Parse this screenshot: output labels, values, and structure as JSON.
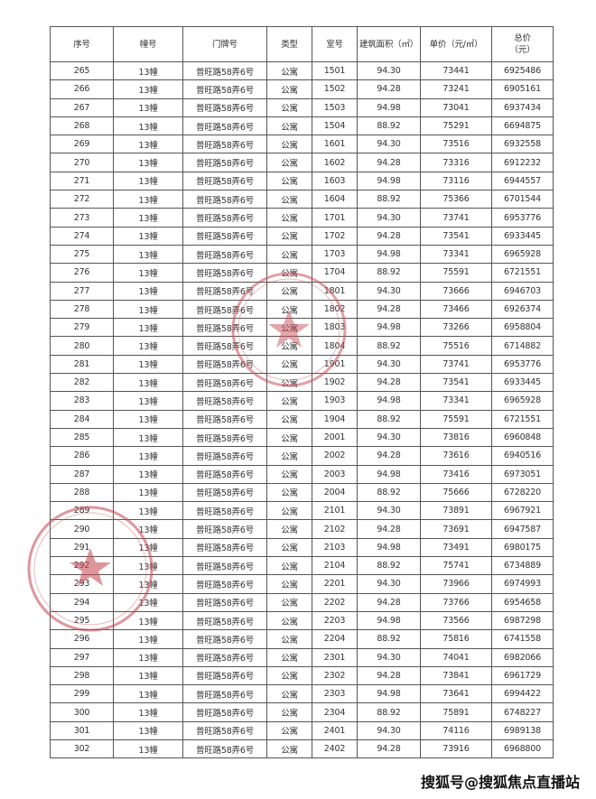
{
  "headers": [
    "序号",
    "幢号",
    "门牌号",
    "类型",
    "室号",
    "建筑面积（㎡）",
    "单价（元/㎡）",
    "总价\n（元）"
  ],
  "rows": [
    [
      "265",
      "13幢",
      "普旺路58弄6号",
      "公寓",
      "1501",
      "94.30",
      "73441",
      "6925486"
    ],
    [
      "266",
      "13幢",
      "普旺路58弄6号",
      "公寓",
      "1502",
      "94.28",
      "73241",
      "6905161"
    ],
    [
      "267",
      "13幢",
      "普旺路58弄6号",
      "公寓",
      "1503",
      "94.98",
      "73041",
      "6937434"
    ],
    [
      "268",
      "13幢",
      "普旺路58弄6号",
      "公寓",
      "1504",
      "88.92",
      "75291",
      "6694875"
    ],
    [
      "269",
      "13幢",
      "普旺路58弄6号",
      "公寓",
      "1601",
      "94.30",
      "73516",
      "6932558"
    ],
    [
      "270",
      "13幢",
      "普旺路58弄6号",
      "公寓",
      "1602",
      "94.28",
      "73316",
      "6912232"
    ],
    [
      "271",
      "13幢",
      "普旺路58弄6号",
      "公寓",
      "1603",
      "94.98",
      "73116",
      "6944557"
    ],
    [
      "272",
      "13幢",
      "普旺路58弄6号",
      "公寓",
      "1604",
      "88.92",
      "75366",
      "6701544"
    ],
    [
      "273",
      "13幢",
      "普旺路58弄6号",
      "公寓",
      "1701",
      "94.30",
      "73741",
      "6953776"
    ],
    [
      "274",
      "13幢",
      "普旺路58弄6号",
      "公寓",
      "1702",
      "94.28",
      "73541",
      "6933445"
    ],
    [
      "275",
      "13幢",
      "普旺路58弄6号",
      "公寓",
      "1703",
      "94.98",
      "73341",
      "6965928"
    ],
    [
      "276",
      "13幢",
      "普旺路58弄6号",
      "公寓",
      "1704",
      "88.92",
      "75591",
      "6721551"
    ],
    [
      "277",
      "13幢",
      "普旺路58弄6号",
      "公寓",
      "1801",
      "94.30",
      "73666",
      "6946703"
    ],
    [
      "278",
      "13幢",
      "普旺路58弄6号",
      "公寓",
      "1802",
      "94.28",
      "73466",
      "6926374"
    ],
    [
      "279",
      "13幢",
      "普旺路58弄6号",
      "公寓",
      "1803",
      "94.98",
      "73266",
      "6958804"
    ],
    [
      "280",
      "13幢",
      "普旺路58弄6号",
      "公寓",
      "1804",
      "88.92",
      "75516",
      "6714882"
    ],
    [
      "281",
      "13幢",
      "普旺路58弄6号",
      "公寓",
      "1901",
      "94.30",
      "73741",
      "6953776"
    ],
    [
      "282",
      "13幢",
      "普旺路58弄6号",
      "公寓",
      "1902",
      "94.28",
      "73541",
      "6933445"
    ],
    [
      "283",
      "13幢",
      "普旺路58弄6号",
      "公寓",
      "1903",
      "94.98",
      "73341",
      "6965928"
    ],
    [
      "284",
      "13幢",
      "普旺路58弄6号",
      "公寓",
      "1904",
      "88.92",
      "75591",
      "6721551"
    ],
    [
      "285",
      "13幢",
      "普旺路58弄6号",
      "公寓",
      "2001",
      "94.30",
      "73816",
      "6960848"
    ],
    [
      "286",
      "13幢",
      "普旺路58弄6号",
      "公寓",
      "2002",
      "94.28",
      "73616",
      "6940516"
    ],
    [
      "287",
      "13幢",
      "普旺路58弄6号",
      "公寓",
      "2003",
      "94.98",
      "73416",
      "6973051"
    ],
    [
      "288",
      "13幢",
      "普旺路58弄6号",
      "公寓",
      "2004",
      "88.92",
      "75666",
      "6728220"
    ],
    [
      "289",
      "13幢",
      "普旺路58弄6号",
      "公寓",
      "2101",
      "94.30",
      "73891",
      "6967921"
    ],
    [
      "290",
      "13幢",
      "普旺路58弄6号",
      "公寓",
      "2102",
      "94.28",
      "73691",
      "6947587"
    ],
    [
      "291",
      "13幢",
      "普旺路58弄6号",
      "公寓",
      "2103",
      "94.98",
      "73491",
      "6980175"
    ],
    [
      "292",
      "13幢",
      "普旺路58弄6号",
      "公寓",
      "2104",
      "88.92",
      "75741",
      "6734889"
    ],
    [
      "293",
      "13幢",
      "普旺路58弄6号",
      "公寓",
      "2201",
      "94.30",
      "73966",
      "6974993"
    ],
    [
      "294",
      "13幢",
      "普旺路58弄6号",
      "公寓",
      "2202",
      "94.28",
      "73766",
      "6954658"
    ],
    [
      "295",
      "13幢",
      "普旺路58弄6号",
      "公寓",
      "2203",
      "94.98",
      "73566",
      "6987298"
    ],
    [
      "296",
      "13幢",
      "普旺路58弄6号",
      "公寓",
      "2204",
      "88.92",
      "75816",
      "6741558"
    ],
    [
      "297",
      "13幢",
      "普旺路58弄6号",
      "公寓",
      "2301",
      "94.30",
      "74041",
      "6982066"
    ],
    [
      "298",
      "13幢",
      "普旺路58弄6号",
      "公寓",
      "2302",
      "94.28",
      "73841",
      "6961729"
    ],
    [
      "299",
      "13幢",
      "普旺路58弄6号",
      "公寓",
      "2303",
      "94.98",
      "73641",
      "6994422"
    ],
    [
      "300",
      "13幢",
      "普旺路58弄6号",
      "公寓",
      "2304",
      "88.92",
      "75891",
      "6748227"
    ],
    [
      "301",
      "13幢",
      "普旺路58弄6号",
      "公寓",
      "2401",
      "94.30",
      "74116",
      "6989138"
    ],
    [
      "302",
      "13幢",
      "普旺路58弄6号",
      "公寓",
      "2402",
      "94.28",
      "73916",
      "6968800"
    ]
  ],
  "watermark": "搜狐号@搜狐焦点直播站",
  "colors": {
    "stamp": "#c8505a",
    "grid": "#555555"
  }
}
